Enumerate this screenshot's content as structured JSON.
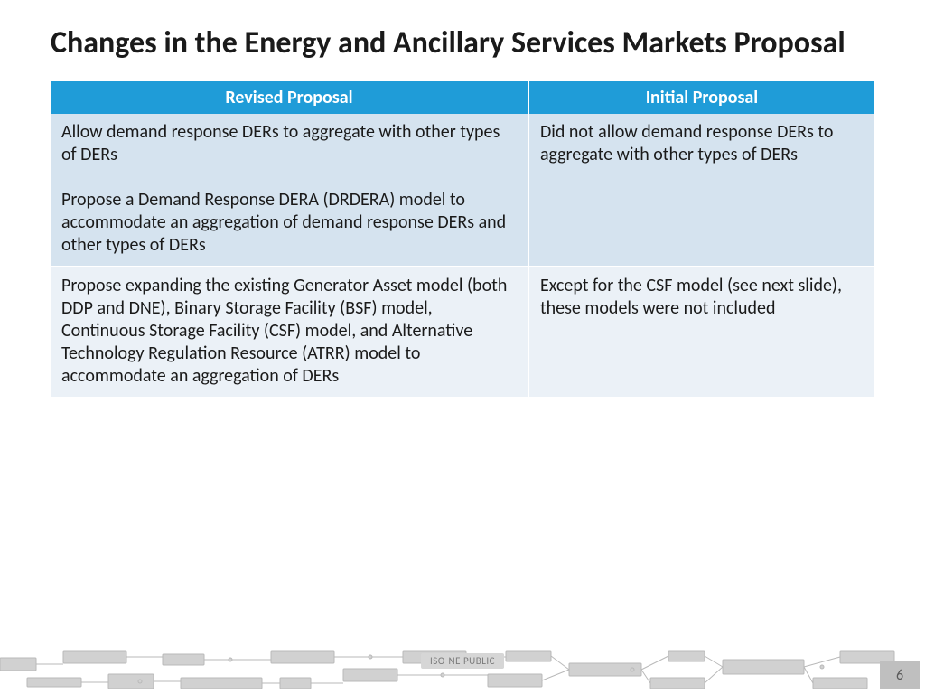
{
  "title": "Changes in the Energy and Ancillary Services Markets Proposal",
  "table": {
    "header_bg": "#1f9cd8",
    "header_fg": "#ffffff",
    "row_colors": [
      "#d5e3ef",
      "#ebf1f7"
    ],
    "col_widths_pct": [
      58,
      42
    ],
    "columns": [
      "Revised Proposal",
      "Initial Proposal"
    ],
    "rows": [
      {
        "revised": "Allow demand response DERs to aggregate with other types of DERs\n\nPropose a Demand Response DERA (DRDERA) model to accommodate an aggregation of demand response DERs and other types of DERs",
        "initial": "Did not allow demand response DERs to aggregate with other types of DERs"
      },
      {
        "revised": "Propose expanding the existing Generator Asset model (both DDP and DNE), Binary Storage Facility (BSF) model, Continuous Storage Facility (CSF) model, and Alternative Technology Regulation Resource (ATRR) model to accommodate an aggregation of DERs",
        "initial": "Except for the CSF model (see next slide), these models were not included"
      }
    ]
  },
  "footer": {
    "label": "ISO-NE PUBLIC",
    "page_number": "6",
    "circuit_color": "#c9c9c9",
    "circuit_line": "#adadad",
    "page_box_bg": "#bfbfbf",
    "page_box_fg": "#5a5a5a"
  }
}
